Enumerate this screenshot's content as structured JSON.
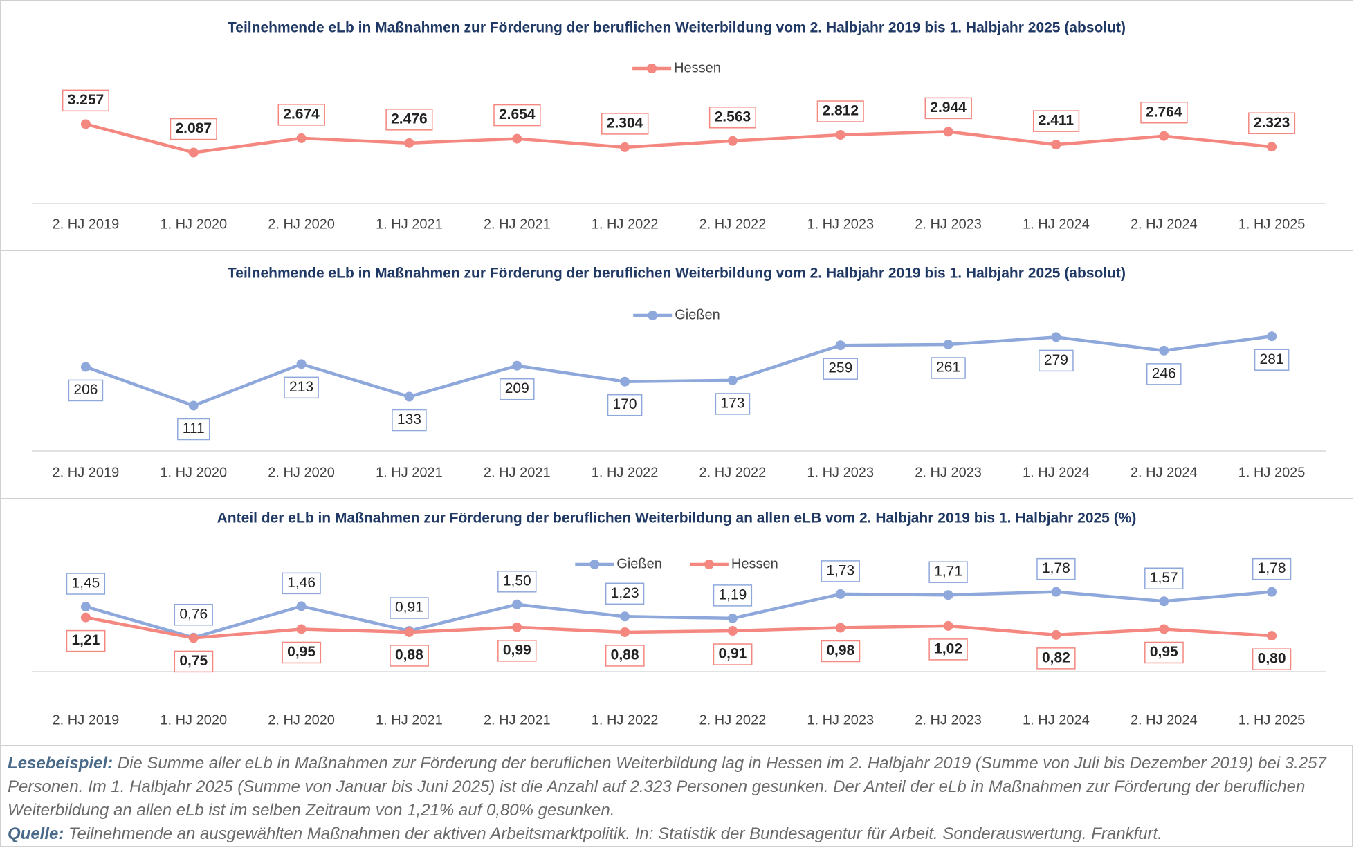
{
  "chart_data": [
    {
      "type": "line",
      "title": "Teilnehmende eLb in Maßnahmen zur Förderung der beruflichen Weiterbildung vom 2. Halbjahr 2019 bis 1. Halbjahr 2025 (absolut)",
      "categories": [
        "2. HJ 2019",
        "1. HJ 2020",
        "2. HJ 2020",
        "1. HJ 2021",
        "2. HJ 2021",
        "1. HJ 2022",
        "2. HJ 2022",
        "1. HJ 2023",
        "2. HJ 2023",
        "1. HJ 2024",
        "2. HJ 2024",
        "1. HJ 2025"
      ],
      "series": [
        {
          "name": "Hessen",
          "color": "#f4877f",
          "values": [
            3257,
            2087,
            2674,
            2476,
            2654,
            2304,
            2563,
            2812,
            2944,
            2411,
            2764,
            2323
          ],
          "value_labels": [
            "3.257",
            "2.087",
            "2.674",
            "2.476",
            "2.654",
            "2.304",
            "2.563",
            "2.812",
            "2.944",
            "2.411",
            "2.764",
            "2.323"
          ]
        }
      ],
      "ylim": [
        0,
        5000
      ],
      "legend": "top"
    },
    {
      "type": "line",
      "title": "Teilnehmende eLb in Maßnahmen zur Förderung der beruflichen Weiterbildung vom 2. Halbjahr 2019 bis 1. Halbjahr 2025 (absolut)",
      "categories": [
        "2. HJ 2019",
        "1. HJ 2020",
        "2. HJ 2020",
        "1. HJ 2021",
        "2. HJ 2021",
        "1. HJ 2022",
        "2. HJ 2022",
        "1. HJ 2023",
        "2. HJ 2023",
        "1. HJ 2024",
        "2. HJ 2024",
        "1. HJ 2025"
      ],
      "series": [
        {
          "name": "Gießen",
          "color": "#8fa8dc",
          "values": [
            206,
            111,
            213,
            133,
            209,
            170,
            173,
            259,
            261,
            279,
            246,
            281
          ]
        }
      ],
      "ylim": [
        0,
        300
      ],
      "legend": "top"
    },
    {
      "type": "line",
      "title": "Anteil der eLb in Maßnahmen zur Förderung der beruflichen Weiterbildung an allen eLB vom 2. Halbjahr 2019 bis 1. Halbjahr 2025 (%)",
      "categories": [
        "2. HJ 2019",
        "1. HJ 2020",
        "2. HJ 2020",
        "1. HJ 2021",
        "2. HJ 2021",
        "1. HJ 2022",
        "2. HJ 2022",
        "1. HJ 2023",
        "2. HJ 2023",
        "1. HJ 2024",
        "2. HJ 2024",
        "1. HJ 2025"
      ],
      "series": [
        {
          "name": "Gießen",
          "color": "#8fa8dc",
          "values": [
            1.45,
            0.76,
            1.46,
            0.91,
            1.5,
            1.23,
            1.19,
            1.73,
            1.71,
            1.78,
            1.57,
            1.78
          ],
          "value_labels": [
            "1,45",
            "0,76",
            "1,46",
            "0,91",
            "1,50",
            "1,23",
            "1,19",
            "1,73",
            "1,71",
            "1,78",
            "1,57",
            "1,78"
          ]
        },
        {
          "name": "Hessen",
          "color": "#f4877f",
          "values": [
            1.21,
            0.75,
            0.95,
            0.88,
            0.99,
            0.88,
            0.91,
            0.98,
            1.02,
            0.82,
            0.95,
            0.8
          ],
          "value_labels": [
            "1,21",
            "0,75",
            "0,95",
            "0,88",
            "0,99",
            "0,88",
            "0,91",
            "0,98",
            "1,02",
            "0,82",
            "0,95",
            "0,80"
          ]
        }
      ],
      "ylim": [
        0,
        2.5
      ],
      "legend": "top"
    }
  ],
  "footer": {
    "reading_example": {
      "label": "Lesebeispiel:",
      "text": "Die Summe aller eLb in Maßnahmen zur Förderung der beruflichen Weiterbildung lag in Hessen im 2. Halbjahr 2019 (Summe von Juli bis Dezember 2019) bei 3.257 Personen. Im 1. Halbjahr 2025 (Summe von Januar bis Juni 2025) ist die Anzahl auf 2.323 Personen gesunken. Der Anteil der eLb in Maßnahmen zur Förderung der beruflichen Weiterbildung an allen eLb ist im selben Zeitraum von 1,21% auf 0,80% gesunken."
    },
    "source": {
      "label": "Quelle:",
      "text": "Teilnehmende an ausgewählten Maßnahmen der aktiven Arbeitsmarktpolitik. In: Statistik der Bundesagentur für Arbeit. Sonderauswertung. Frankfurt."
    }
  }
}
